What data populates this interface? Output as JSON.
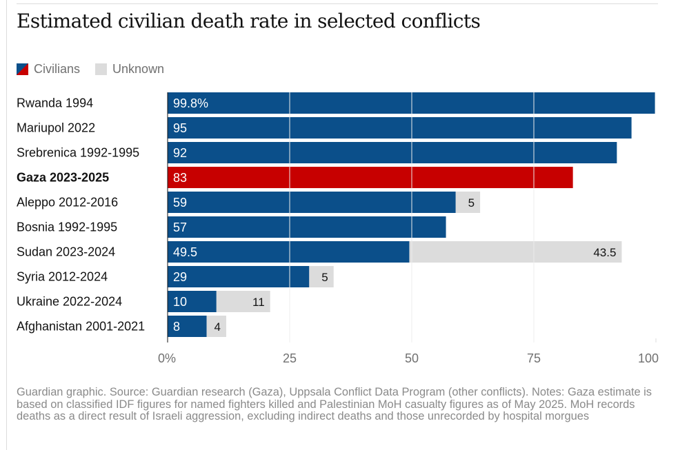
{
  "title": "Estimated civilian death rate in selected conflicts",
  "legend": {
    "civilians": "Civilians",
    "unknown": "Unknown"
  },
  "colors": {
    "civilian": "#0b4f8a",
    "highlight": "#c70000",
    "unknown": "#dcdcdc",
    "gridline": "#ffffff",
    "axis_text": "#707070"
  },
  "chart_data": {
    "type": "bar",
    "orientation": "horizontal",
    "stacked": true,
    "categories": [
      "Rwanda 1994",
      "Mariupol 2022",
      "Srebrenica 1992-1995",
      "Gaza 2023-2025",
      "Aleppo 2012-2016",
      "Bosnia 1992-1995",
      "Sudan 2023-2024",
      "Syria 2012-2024",
      "Ukraine 2022-2024",
      "Afghanistan 2001-2021"
    ],
    "highlight_category": "Gaza 2023-2025",
    "series": [
      {
        "name": "Civilians",
        "values": [
          99.8,
          95,
          92,
          83,
          59,
          57,
          49.5,
          29,
          10,
          8
        ],
        "labels": [
          "99.8%",
          "95",
          "92",
          "83",
          "59",
          "57",
          "49.5",
          "29",
          "10",
          "8"
        ]
      },
      {
        "name": "Unknown",
        "values": [
          0,
          0,
          0,
          0,
          5,
          0,
          43.5,
          5,
          11,
          4
        ],
        "labels": [
          "",
          "",
          "",
          "",
          "5",
          "",
          "43.5",
          "5",
          "11",
          "4"
        ]
      }
    ],
    "x_ticks": [
      "0%",
      "25",
      "50",
      "75",
      "100"
    ],
    "x_tick_values": [
      0,
      25,
      50,
      75,
      100
    ],
    "xlim": [
      0,
      100
    ],
    "grid": true
  },
  "footnote": "Guardian graphic. Source: Guardian research (Gaza), Uppsala Conflict Data Program (other conflicts). Notes: Gaza estimate is based on classified IDF figures for named fighters killed and Palestinian MoH casualty figures as of May 2025. MoH records deaths as a direct result of Israeli aggression, excluding indirect deaths and those unrecorded by hospital morgues"
}
